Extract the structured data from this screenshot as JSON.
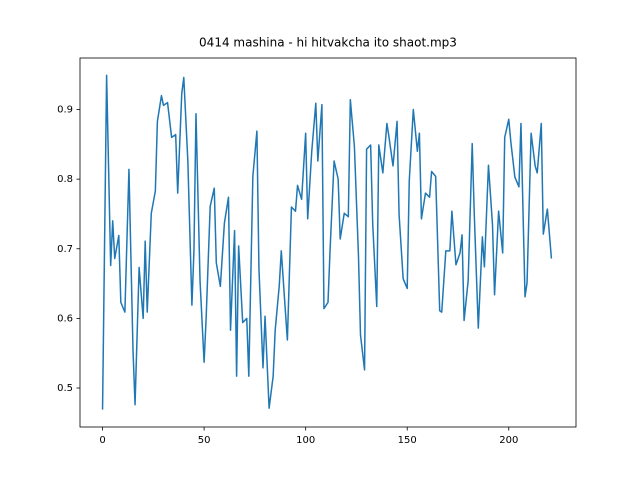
{
  "chart_data": {
    "type": "line",
    "title": "0414 mashina - hi hitvakcha ito shaot.mp3",
    "x": [
      0,
      2,
      4,
      5,
      6,
      8,
      9,
      11,
      13,
      15,
      16,
      18,
      20,
      21,
      22,
      24,
      26,
      27,
      29,
      30,
      32,
      34,
      36,
      37,
      39,
      40,
      42,
      44,
      45,
      46,
      48,
      50,
      51,
      53,
      55,
      56,
      58,
      60,
      62,
      63,
      65,
      66,
      67,
      69,
      71,
      72,
      74,
      76,
      77,
      79,
      80,
      82,
      84,
      85,
      87,
      88,
      90,
      91,
      93,
      95,
      96,
      98,
      100,
      101,
      103,
      105,
      106,
      108,
      109,
      111,
      112,
      114,
      116,
      117,
      119,
      121,
      122,
      124,
      126,
      127,
      129,
      130,
      132,
      133,
      135,
      136,
      138,
      140,
      141,
      143,
      145,
      146,
      148,
      150,
      151,
      153,
      155,
      156,
      157,
      159,
      161,
      162,
      164,
      166,
      167,
      169,
      171,
      172,
      174,
      176,
      177,
      178,
      180,
      182,
      183,
      185,
      187,
      188,
      190,
      192,
      193,
      195,
      197,
      198,
      200,
      201,
      203,
      205,
      206,
      208,
      209,
      211,
      213,
      214,
      216,
      217,
      219,
      221
    ],
    "series": [
      {
        "color": "#1f77b4",
        "values": [
          0.469,
          0.949,
          0.676,
          0.74,
          0.686,
          0.719,
          0.623,
          0.609,
          0.814,
          0.554,
          0.476,
          0.673,
          0.6,
          0.711,
          0.609,
          0.751,
          0.783,
          0.883,
          0.92,
          0.906,
          0.91,
          0.86,
          0.864,
          0.78,
          0.923,
          0.946,
          0.826,
          0.619,
          0.697,
          0.894,
          0.654,
          0.537,
          0.6,
          0.761,
          0.787,
          0.68,
          0.646,
          0.737,
          0.774,
          0.583,
          0.726,
          0.517,
          0.704,
          0.594,
          0.6,
          0.517,
          0.804,
          0.869,
          0.671,
          0.529,
          0.603,
          0.471,
          0.517,
          0.583,
          0.647,
          0.697,
          0.611,
          0.569,
          0.76,
          0.754,
          0.791,
          0.771,
          0.866,
          0.743,
          0.84,
          0.909,
          0.826,
          0.907,
          0.614,
          0.623,
          0.697,
          0.826,
          0.8,
          0.714,
          0.751,
          0.746,
          0.914,
          0.847,
          0.69,
          0.576,
          0.526,
          0.843,
          0.849,
          0.737,
          0.617,
          0.849,
          0.809,
          0.88,
          0.861,
          0.819,
          0.883,
          0.749,
          0.657,
          0.643,
          0.797,
          0.9,
          0.84,
          0.866,
          0.743,
          0.78,
          0.774,
          0.811,
          0.804,
          0.611,
          0.609,
          0.697,
          0.697,
          0.754,
          0.677,
          0.694,
          0.72,
          0.597,
          0.654,
          0.851,
          0.751,
          0.586,
          0.717,
          0.674,
          0.82,
          0.734,
          0.634,
          0.754,
          0.694,
          0.86,
          0.886,
          0.854,
          0.803,
          0.789,
          0.88,
          0.631,
          0.651,
          0.866,
          0.819,
          0.809,
          0.88,
          0.721,
          0.757,
          0.686
        ]
      }
    ],
    "xlim": [
      -11.1,
      233.1
    ],
    "ylim": [
      0.444,
      0.974
    ],
    "xticks": [
      0,
      50,
      100,
      150,
      200
    ],
    "yticks": [
      0.5,
      0.6,
      0.7,
      0.8,
      0.9
    ]
  }
}
